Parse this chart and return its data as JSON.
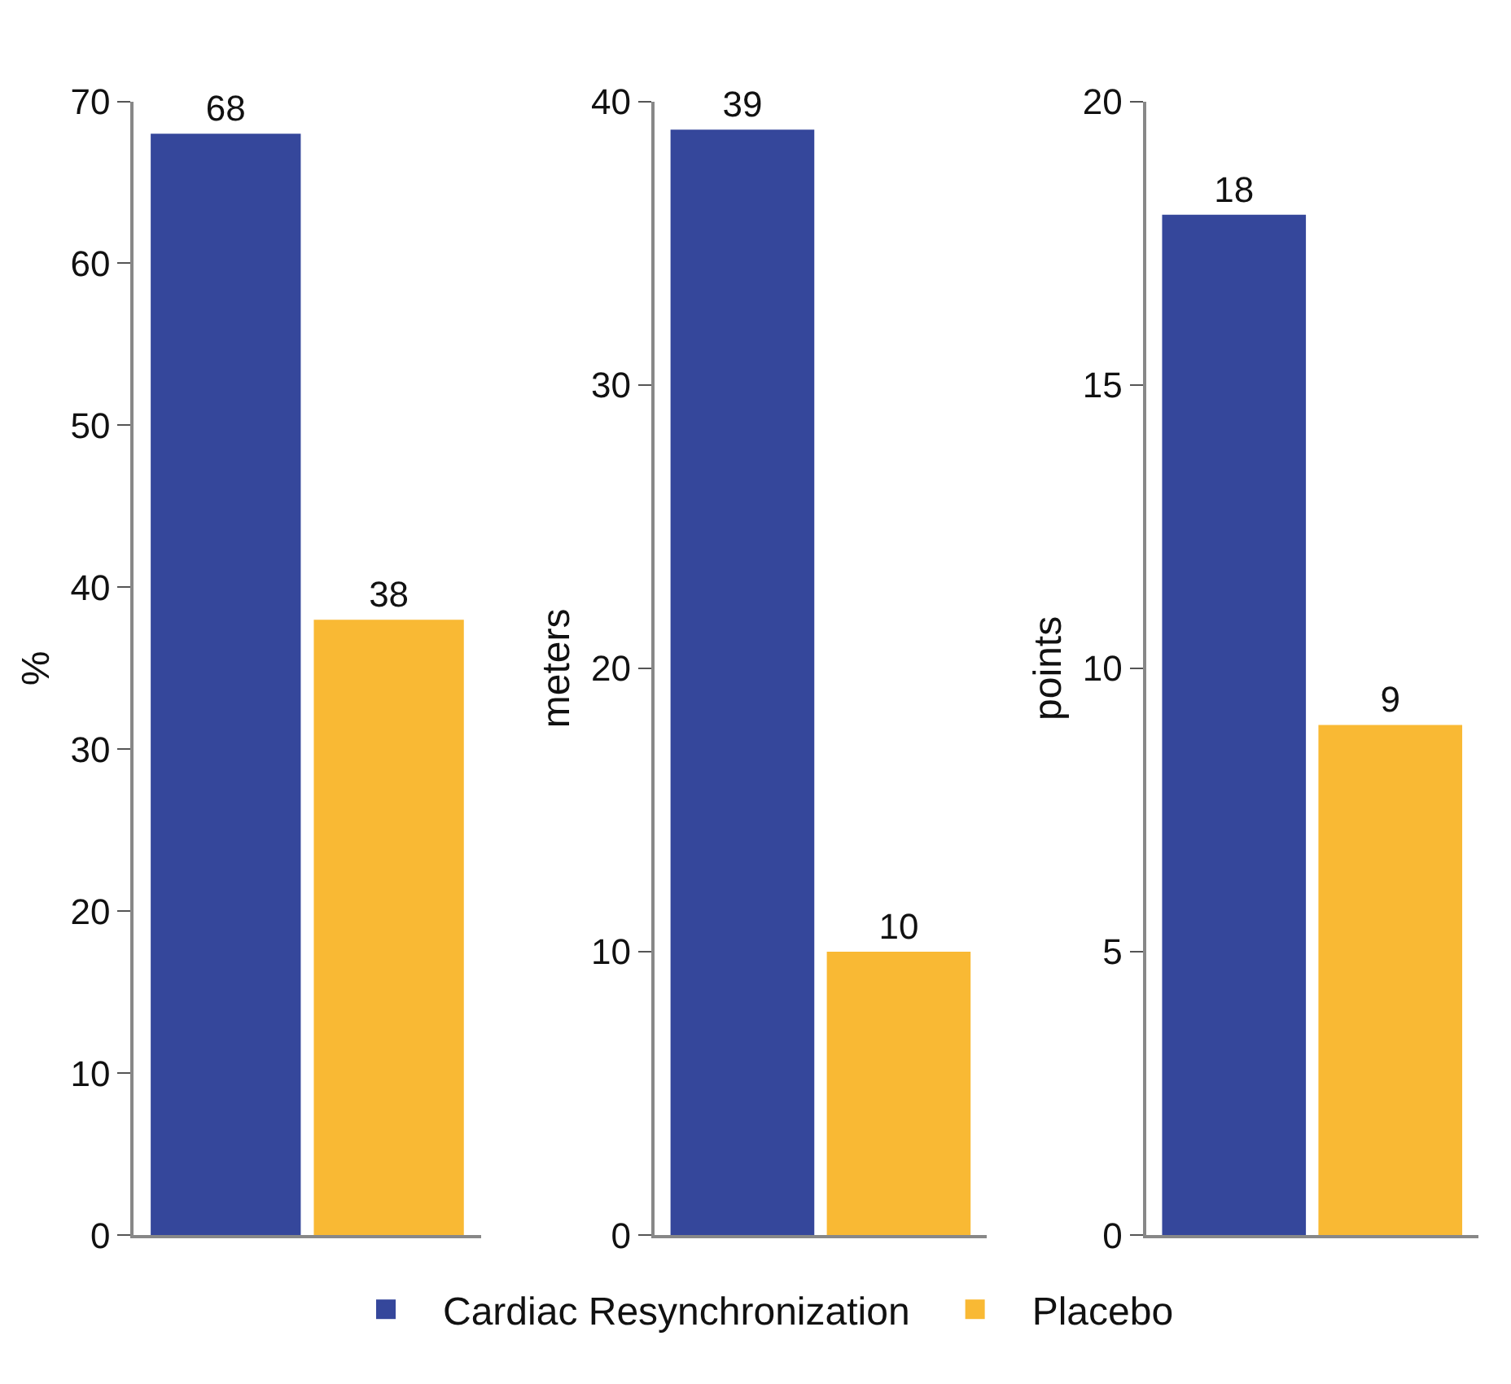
{
  "chart_data": [
    {
      "type": "bar",
      "ylabel": "%",
      "categories": [
        null
      ],
      "ylim": [
        0,
        70
      ],
      "yticks": [
        0,
        10,
        20,
        30,
        40,
        50,
        60,
        70
      ],
      "data_labels": true,
      "legend": "bottom",
      "series": [
        {
          "name": "Cardiac Resynchronization",
          "color": "#35479b",
          "values": [
            68
          ]
        },
        {
          "name": "Placebo",
          "color": "#f9b934",
          "values": [
            38
          ]
        }
      ]
    },
    {
      "type": "bar",
      "ylabel": "meters",
      "categories": [
        null
      ],
      "ylim": [
        0,
        40
      ],
      "yticks": [
        0,
        10,
        20,
        30,
        40
      ],
      "data_labels": true,
      "series": [
        {
          "color": "#35479b",
          "values": [
            39
          ]
        },
        {
          "color": "#f9b934",
          "values": [
            10
          ]
        }
      ]
    },
    {
      "type": "bar",
      "ylabel": "points",
      "categories": [
        null
      ],
      "ylim": [
        0,
        20
      ],
      "yticks": [
        0,
        5,
        10,
        15,
        20
      ],
      "data_labels": true,
      "series": [
        {
          "color": "#35479b",
          "values": [
            18
          ]
        },
        {
          "color": "#f9b934",
          "values": [
            9
          ]
        }
      ]
    }
  ]
}
